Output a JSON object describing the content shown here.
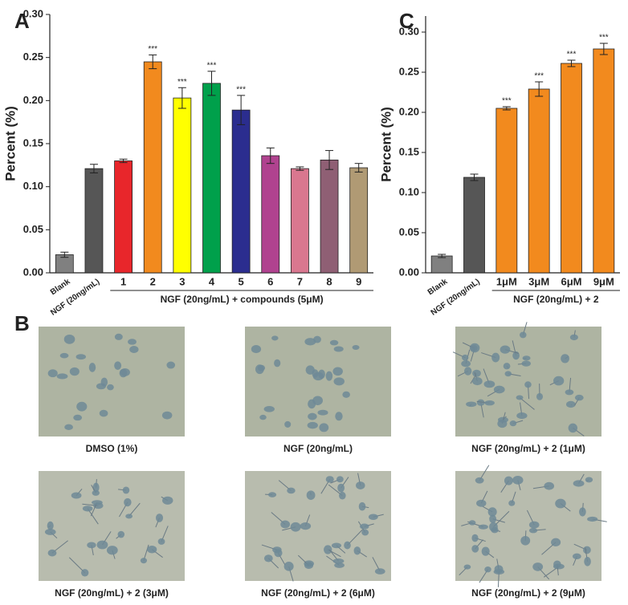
{
  "chart_data": [
    {
      "type": "bar",
      "label": "A",
      "y_label": "Percent (%)",
      "categories": [
        "Blank",
        "NGF (20ng/mL)",
        "1",
        "2",
        "3",
        "4",
        "5",
        "6",
        "7",
        "8",
        "9"
      ],
      "group_label": "NGF (20ng/mL) + compounds (5μM)",
      "values": [
        0.021,
        0.121,
        0.13,
        0.245,
        0.203,
        0.22,
        0.189,
        0.136,
        0.121,
        0.131,
        0.122
      ],
      "error": [
        0.003,
        0.005,
        0.002,
        0.008,
        0.012,
        0.014,
        0.017,
        0.009,
        0.002,
        0.011,
        0.005
      ],
      "significance": [
        null,
        null,
        null,
        "***",
        "***",
        "***",
        "***",
        null,
        null,
        null,
        null
      ],
      "colors": [
        "#808080",
        "#565656",
        "#e8262b",
        "#f28a1e",
        "#ffff00",
        "#00a04b",
        "#2b2d8f",
        "#b0428f",
        "#d9778f",
        "#8f5f74",
        "#b09a74"
      ],
      "ylim": [
        0,
        0.3
      ],
      "yticks": [
        {
          "value": 0,
          "label": "0.00"
        },
        {
          "value": 0.05,
          "label": "0.05"
        },
        {
          "value": 0.1,
          "label": "0.10"
        },
        {
          "value": 0.15,
          "label": "0.15"
        },
        {
          "value": 0.2,
          "label": "0.20"
        },
        {
          "value": 0.25,
          "label": "0.25"
        },
        {
          "value": 0.3,
          "label": "0.30"
        }
      ]
    },
    {
      "type": "bar",
      "label": "C",
      "y_label": "Percent (%)",
      "categories": [
        "Blank",
        "NGF (20ng/mL)",
        "1μM",
        "3μM",
        "6μM",
        "9μM"
      ],
      "group_label": "NGF (20ng/mL) + 2",
      "values": [
        0.021,
        0.119,
        0.205,
        0.229,
        0.261,
        0.279
      ],
      "error": [
        0.002,
        0.004,
        0.002,
        0.009,
        0.004,
        0.007
      ],
      "significance": [
        null,
        null,
        "***",
        "***",
        "***",
        "***"
      ],
      "colors": [
        "#808080",
        "#565656",
        "#f28a1e",
        "#f28a1e",
        "#f28a1e",
        "#f28a1e"
      ],
      "ylim": [
        0,
        0.32
      ],
      "yticks": [
        {
          "value": 0,
          "label": "0.00"
        },
        {
          "value": 0.05,
          "label": "0.05"
        },
        {
          "value": 0.1,
          "label": "0.10"
        },
        {
          "value": 0.15,
          "label": "0.15"
        },
        {
          "value": 0.2,
          "label": "0.20"
        },
        {
          "value": 0.25,
          "label": "0.25"
        },
        {
          "value": 0.3,
          "label": "0.30"
        }
      ]
    }
  ],
  "panel_b": {
    "label": "B",
    "images": [
      {
        "caption": "DMSO (1%)"
      },
      {
        "caption": "NGF (20ng/mL)"
      },
      {
        "caption": "NGF (20ng/mL) + 2 (1μM)"
      },
      {
        "caption": "NGF (20ng/mL) + 2 (3μM)"
      },
      {
        "caption": "NGF (20ng/mL) + 2 (6μM)"
      },
      {
        "caption": "NGF (20ng/mL) + 2 (9μM)"
      }
    ]
  }
}
